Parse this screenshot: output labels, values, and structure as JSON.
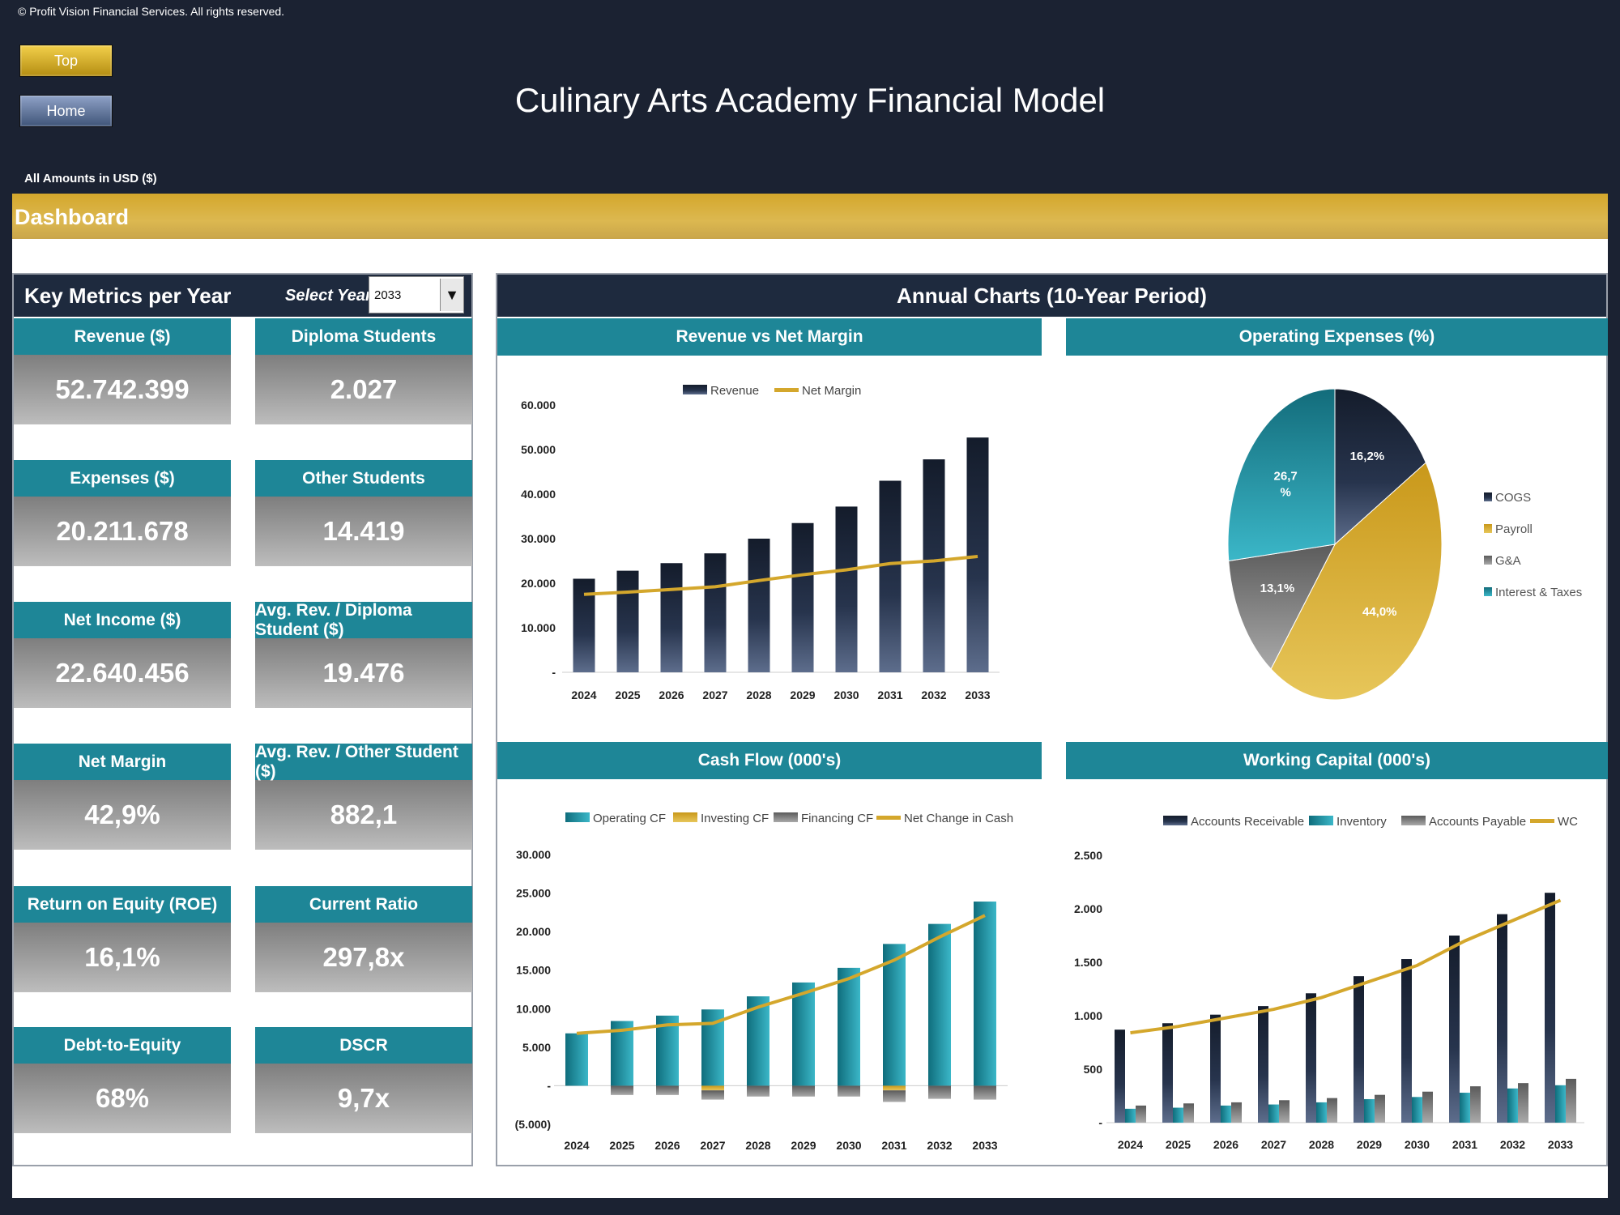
{
  "header": {
    "copyright": "© Profit Vision Financial Services. All rights reserved.",
    "top_button": "Top",
    "home_button": "Home",
    "title": "Culinary Arts Academy Financial Model",
    "amounts_note": "All Amounts in  USD ($)",
    "section_title": "Dashboard"
  },
  "key_metrics": {
    "title": "Key Metrics per Year",
    "select_label": "Select Year",
    "selected_year": "2033",
    "items": [
      {
        "label": "Revenue ($)",
        "value": "52.742.399"
      },
      {
        "label": "Diploma Students",
        "value": "2.027"
      },
      {
        "label": "Expenses ($)",
        "value": "20.211.678"
      },
      {
        "label": "Other Students",
        "value": "14.419"
      },
      {
        "label": "Net Income ($)",
        "value": "22.640.456"
      },
      {
        "label": "Avg. Rev. / Diploma Student ($)",
        "value": "19.476"
      },
      {
        "label": "Net Margin",
        "value": "42,9%"
      },
      {
        "label": "Avg. Rev. / Other Student ($)",
        "value": "882,1"
      },
      {
        "label": "Return on Equity (ROE)",
        "value": "16,1%"
      },
      {
        "label": "Current Ratio",
        "value": "297,8x"
      },
      {
        "label": "Debt-to-Equity",
        "value": "68%"
      },
      {
        "label": "DSCR",
        "value": "9,7x"
      }
    ]
  },
  "charts_panel": {
    "title": "Annual Charts (10-Year Period)"
  },
  "colors": {
    "navy": "#1e2a3e",
    "teal": "#1e8697",
    "gold": "#d4a72c",
    "gray": "#8a8a8a"
  },
  "chart_data": [
    {
      "type": "bar",
      "title": "Revenue vs Net Margin",
      "categories": [
        "2024",
        "2025",
        "2026",
        "2027",
        "2028",
        "2029",
        "2030",
        "2031",
        "2032",
        "2033"
      ],
      "series": [
        {
          "name": "Revenue",
          "type": "bar",
          "values": [
            21000,
            22800,
            24500,
            26700,
            30000,
            33500,
            37200,
            43000,
            47800,
            52700
          ]
        },
        {
          "name": "Net Margin",
          "type": "line",
          "values": [
            17500,
            18000,
            18600,
            19200,
            20600,
            21900,
            23000,
            24400,
            25000,
            26000
          ]
        }
      ],
      "ylim": [
        0,
        60000
      ],
      "yticks": [
        "-",
        "10.000",
        "20.000",
        "30.000",
        "40.000",
        "50.000",
        "60.000"
      ],
      "legend": "top"
    },
    {
      "type": "pie",
      "title": "Operating Expenses (%)",
      "slices": [
        {
          "name": "COGS",
          "value": 16.2,
          "label": "16,2%"
        },
        {
          "name": "Payroll",
          "value": 44.0,
          "label": "44,0%"
        },
        {
          "name": "G&A",
          "value": 13.1,
          "label": "13,1%"
        },
        {
          "name": "Interest & Taxes",
          "value": 26.7,
          "label": "26,7 %"
        }
      ],
      "legend": "right"
    },
    {
      "type": "bar",
      "title": "Cash Flow (000's)",
      "categories": [
        "2024",
        "2025",
        "2026",
        "2027",
        "2028",
        "2029",
        "2030",
        "2031",
        "2032",
        "2033"
      ],
      "series": [
        {
          "name": "Operating CF",
          "type": "bar",
          "values": [
            6800,
            8400,
            9100,
            9900,
            11600,
            13400,
            15300,
            18400,
            21000,
            23900
          ]
        },
        {
          "name": "Investing CF",
          "type": "bar",
          "values": [
            0,
            0,
            0,
            -600,
            0,
            0,
            0,
            -600,
            0,
            0
          ]
        },
        {
          "name": "Financing CF",
          "type": "bar",
          "values": [
            0,
            -1200,
            -1200,
            -1200,
            -1400,
            -1400,
            -1400,
            -1500,
            -1700,
            -1800
          ]
        },
        {
          "name": "Net Change in Cash",
          "type": "line",
          "values": [
            6800,
            7200,
            7900,
            8100,
            10200,
            12000,
            13900,
            16300,
            19300,
            22100
          ]
        }
      ],
      "ylim": [
        -5000,
        30000
      ],
      "yticks": [
        "(5.000)",
        "-",
        "5.000",
        "10.000",
        "15.000",
        "20.000",
        "25.000",
        "30.000"
      ],
      "legend": "top"
    },
    {
      "type": "bar",
      "title": "Working Capital (000's)",
      "categories": [
        "2024",
        "2025",
        "2026",
        "2027",
        "2028",
        "2029",
        "2030",
        "2031",
        "2032",
        "2033"
      ],
      "series": [
        {
          "name": "Accounts Receivable",
          "type": "bar",
          "values": [
            870,
            930,
            1010,
            1090,
            1210,
            1370,
            1530,
            1750,
            1950,
            2150
          ]
        },
        {
          "name": "Inventory",
          "type": "bar",
          "values": [
            130,
            140,
            160,
            170,
            190,
            220,
            240,
            280,
            320,
            350
          ]
        },
        {
          "name": "Accounts Payable",
          "type": "bar",
          "values": [
            160,
            180,
            190,
            210,
            230,
            260,
            290,
            340,
            370,
            410
          ]
        },
        {
          "name": "WC",
          "type": "line",
          "values": [
            840,
            900,
            980,
            1060,
            1170,
            1320,
            1470,
            1700,
            1890,
            2080
          ]
        }
      ],
      "ylim": [
        0,
        2500
      ],
      "yticks": [
        "-",
        "500",
        "1.000",
        "1.500",
        "2.000",
        "2.500"
      ],
      "legend": "top"
    }
  ]
}
